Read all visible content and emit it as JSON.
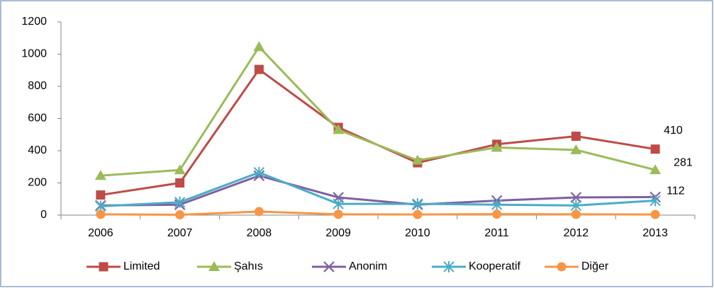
{
  "chart_data": {
    "type": "line",
    "categories": [
      "2006",
      "2007",
      "2008",
      "2009",
      "2010",
      "2011",
      "2012",
      "2013"
    ],
    "series": [
      {
        "name": "Limited",
        "color": "#be4b48",
        "marker": "square",
        "label_last": true,
        "values": [
          125,
          200,
          905,
          545,
          325,
          440,
          490,
          410
        ]
      },
      {
        "name": "Şahıs",
        "color": "#9bbb59",
        "marker": "triangle",
        "label_last": true,
        "values": [
          245,
          280,
          1045,
          530,
          340,
          420,
          405,
          281
        ]
      },
      {
        "name": "Anonim",
        "color": "#7f60a0",
        "marker": "x",
        "label_last": true,
        "values": [
          60,
          65,
          245,
          110,
          65,
          90,
          110,
          112
        ]
      },
      {
        "name": "Kooperatif",
        "color": "#4bacc6",
        "marker": "star",
        "label_last": false,
        "values": [
          55,
          80,
          265,
          70,
          70,
          65,
          60,
          90
        ]
      },
      {
        "name": "Diğer",
        "color": "#f79646",
        "marker": "circle",
        "label_last": false,
        "values": [
          5,
          2,
          22,
          5,
          4,
          6,
          5,
          4
        ]
      }
    ],
    "ylim": [
      0,
      1200
    ],
    "yticks": [
      0,
      200,
      400,
      600,
      800,
      1000,
      1200
    ],
    "grid": false,
    "legend": "bottom"
  }
}
